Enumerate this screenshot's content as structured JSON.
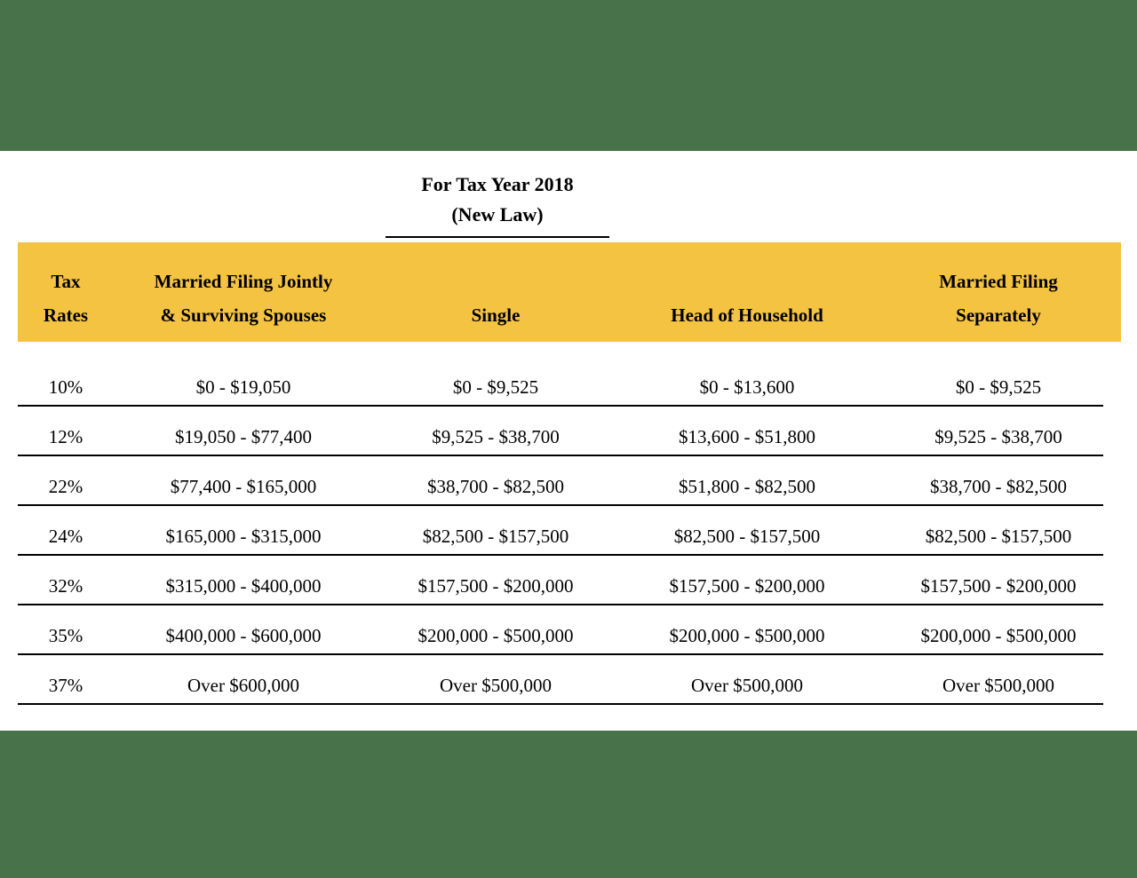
{
  "page": {
    "title_line1": "For Tax Year 2018",
    "title_line2": "(New Law)"
  },
  "colors": {
    "background_green": "#47724A",
    "header_yellow": "#F5C342",
    "text": "#000000"
  },
  "table": {
    "headers": [
      {
        "line1": "Tax",
        "line2": "Rates"
      },
      {
        "line1": "Married Filing Jointly",
        "line2": "& Surviving Spouses"
      },
      {
        "line1": "",
        "line2": "Single"
      },
      {
        "line1": "",
        "line2": "Head of Household"
      },
      {
        "line1": "Married Filing",
        "line2": "Separately"
      }
    ],
    "rows": [
      {
        "rate": "10%",
        "mfj": "$0 - $19,050",
        "single": "$0 - $9,525",
        "hoh": "$0 - $13,600",
        "mfs": "$0 - $9,525"
      },
      {
        "rate": "12%",
        "mfj": "$19,050 - $77,400",
        "single": "$9,525 - $38,700",
        "hoh": "$13,600 - $51,800",
        "mfs": "$9,525 - $38,700"
      },
      {
        "rate": "22%",
        "mfj": "$77,400 - $165,000",
        "single": "$38,700 - $82,500",
        "hoh": "$51,800 - $82,500",
        "mfs": "$38,700 - $82,500"
      },
      {
        "rate": "24%",
        "mfj": "$165,000 - $315,000",
        "single": "$82,500 - $157,500",
        "hoh": "$82,500 - $157,500",
        "mfs": "$82,500 - $157,500"
      },
      {
        "rate": "32%",
        "mfj": "$315,000 - $400,000",
        "single": "$157,500 - $200,000",
        "hoh": "$157,500 - $200,000",
        "mfs": "$157,500 - $200,000"
      },
      {
        "rate": "35%",
        "mfj": "$400,000 - $600,000",
        "single": "$200,000 - $500,000",
        "hoh": "$200,000 - $500,000",
        "mfs": "$200,000 - $500,000"
      },
      {
        "rate": "37%",
        "mfj": "Over $600,000",
        "single": "Over $500,000",
        "hoh": "Over $500,000",
        "mfs": "Over $500,000"
      }
    ]
  }
}
